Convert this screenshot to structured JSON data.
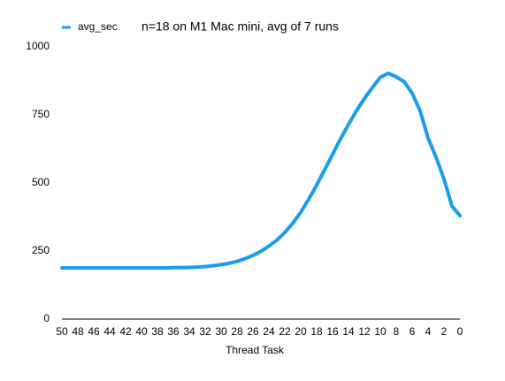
{
  "chart_data": {
    "type": "line",
    "title": "n=18 on M1 Mac mini, avg of 7 runs",
    "x_label": "Thread Task",
    "x": [
      50,
      49,
      48,
      47,
      46,
      45,
      44,
      43,
      42,
      41,
      40,
      39,
      38,
      37,
      36,
      35,
      34,
      33,
      32,
      31,
      30,
      29,
      28,
      27,
      26,
      25,
      24,
      23,
      22,
      21,
      20,
      19,
      18,
      17,
      16,
      15,
      14,
      13,
      12,
      11,
      10,
      9,
      8,
      7,
      6,
      5,
      4,
      3,
      2,
      1,
      0
    ],
    "series": [
      {
        "name": "avg_sec",
        "color": "#1a9bf0",
        "values": [
          188,
          188,
          188,
          188,
          188,
          188,
          188,
          188,
          188,
          188,
          188,
          188,
          188,
          188,
          189,
          189,
          190,
          191,
          193,
          196,
          200,
          205,
          212,
          222,
          234,
          249,
          268,
          290,
          318,
          352,
          392,
          440,
          492,
          548,
          605,
          662,
          715,
          765,
          810,
          850,
          888,
          903,
          890,
          872,
          830,
          765,
          665,
          595,
          515,
          415,
          380
        ]
      }
    ],
    "xlim": [
      50,
      0
    ],
    "xticks": [
      50,
      48,
      46,
      44,
      42,
      40,
      38,
      36,
      34,
      32,
      30,
      28,
      26,
      24,
      22,
      20,
      18,
      16,
      14,
      12,
      10,
      8,
      6,
      4,
      2,
      0
    ],
    "ylim": [
      0,
      1000
    ],
    "yticks": [
      0,
      250,
      500,
      750,
      1000
    ],
    "legend": "top-left"
  }
}
